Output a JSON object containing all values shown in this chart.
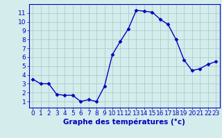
{
  "hours": [
    0,
    1,
    2,
    3,
    4,
    5,
    6,
    7,
    8,
    9,
    10,
    11,
    12,
    13,
    14,
    15,
    16,
    17,
    18,
    19,
    20,
    21,
    22,
    23
  ],
  "temperatures": [
    3.5,
    3.0,
    3.0,
    1.8,
    1.7,
    1.7,
    1.0,
    1.2,
    1.0,
    2.7,
    6.3,
    7.8,
    9.2,
    11.3,
    11.2,
    11.1,
    10.3,
    9.7,
    8.0,
    5.7,
    4.5,
    4.7,
    5.2,
    5.5
  ],
  "line_color": "#0000bb",
  "marker": "D",
  "marker_size": 2.5,
  "bg_color": "#d4ecec",
  "grid_color": "#aacece",
  "axis_color": "#0000bb",
  "xlabel": "Graphe des températures (°c)",
  "xlabel_fontsize": 7.5,
  "ylim": [
    0.3,
    12.0
  ],
  "xlim": [
    -0.5,
    23.5
  ],
  "yticks": [
    1,
    2,
    3,
    4,
    5,
    6,
    7,
    8,
    9,
    10,
    11
  ],
  "xticks": [
    0,
    1,
    2,
    3,
    4,
    5,
    6,
    7,
    8,
    9,
    10,
    11,
    12,
    13,
    14,
    15,
    16,
    17,
    18,
    19,
    20,
    21,
    22,
    23
  ],
  "tick_fontsize": 6.5,
  "linewidth": 1.0
}
